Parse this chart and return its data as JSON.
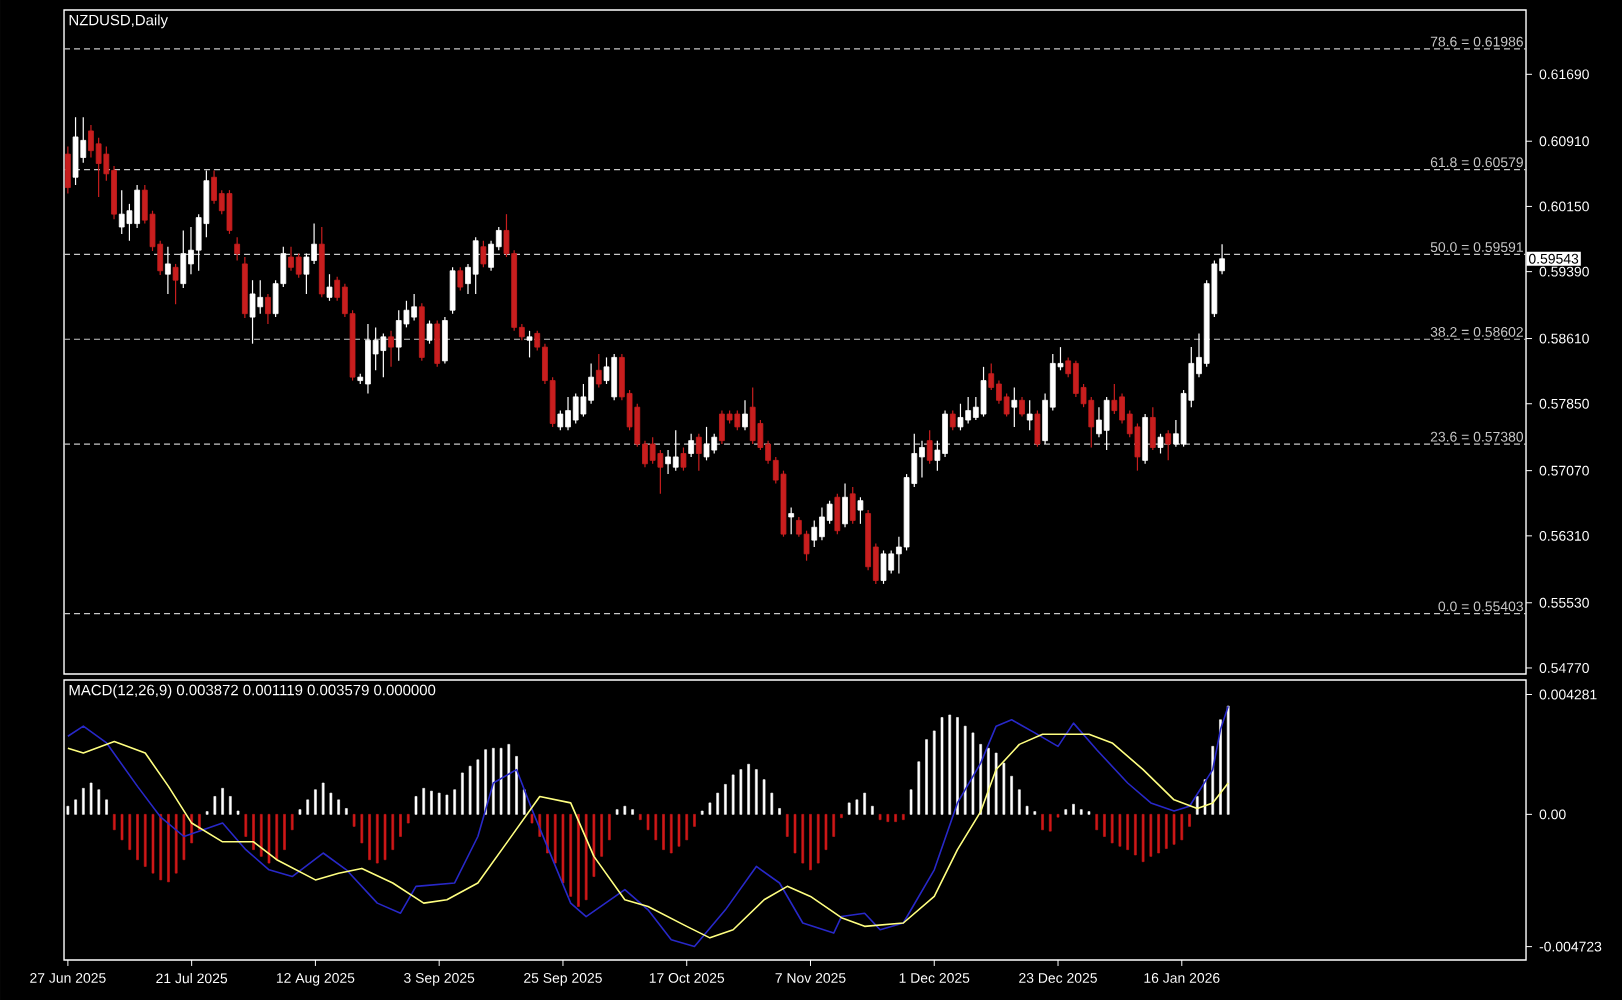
{
  "chart_data": [
    {
      "type": "candlestick",
      "title": "NZDUSD,Daily",
      "tick_labels": "y",
      "categories": [
        null,
        null,
        null,
        null,
        null,
        null,
        null,
        null,
        null,
        null,
        null,
        null,
        null,
        null,
        null,
        null,
        null,
        null,
        null,
        null,
        null,
        null,
        null,
        null,
        null,
        null,
        null,
        null,
        null,
        null,
        null,
        null,
        null,
        null,
        null,
        null,
        null,
        null,
        null,
        null,
        null,
        null,
        null,
        null,
        null,
        null,
        null,
        null,
        null,
        null,
        null,
        null,
        null,
        null,
        null,
        null,
        null,
        null,
        null,
        null,
        null,
        null,
        null,
        null,
        null,
        null,
        null,
        null,
        null,
        null,
        null,
        null,
        null,
        null,
        null,
        null,
        null,
        null,
        null,
        null,
        null,
        null,
        null,
        null,
        null,
        null,
        null,
        null,
        null,
        null,
        null,
        null,
        null,
        null,
        null,
        null,
        null,
        null,
        null,
        null,
        null,
        null,
        null,
        null,
        null,
        null,
        null,
        null,
        null,
        null,
        null,
        null,
        null,
        null,
        null,
        null,
        null,
        null,
        null,
        null,
        null,
        null,
        null,
        null,
        null,
        null,
        null,
        null,
        null,
        null,
        null,
        null,
        null,
        null,
        null,
        null,
        null,
        null,
        null,
        null,
        null,
        null,
        null,
        null,
        null,
        null,
        null,
        null,
        null,
        null,
        null,
        null,
        null,
        null,
        null,
        null,
        null,
        null,
        null,
        null,
        null,
        null,
        null,
        null,
        null,
        null,
        null,
        null,
        null,
        null,
        null,
        null,
        null,
        null,
        null,
        null,
        null,
        null,
        null,
        null,
        null,
        null,
        null,
        null,
        null,
        null,
        null,
        null,
        null,
        null
      ],
      "ohlc": [
        [
          0.6076,
          0.6085,
          0.603,
          0.6037
        ],
        [
          0.6049,
          0.6119,
          0.604,
          0.6096
        ],
        [
          0.6072,
          0.6119,
          0.6066,
          0.6092
        ],
        [
          0.6103,
          0.611,
          0.6072,
          0.608
        ],
        [
          0.6088,
          0.6095,
          0.6026,
          0.6065
        ],
        [
          0.6076,
          0.6085,
          0.6045,
          0.6053
        ],
        [
          0.6057,
          0.6062,
          0.6,
          0.6006
        ],
        [
          0.5991,
          0.6034,
          0.5983,
          0.6006
        ],
        [
          0.5995,
          0.6018,
          0.5975,
          0.601
        ],
        [
          0.5995,
          0.604,
          0.599,
          0.6034
        ],
        [
          0.6034,
          0.604,
          0.5995,
          0.5999
        ],
        [
          0.6006,
          0.601,
          0.5963,
          0.5968
        ],
        [
          0.5971,
          0.5975,
          0.5935,
          0.594
        ],
        [
          0.5936,
          0.5968,
          0.5913,
          0.5948
        ],
        [
          0.5944,
          0.5948,
          0.5901,
          0.5929
        ],
        [
          0.5925,
          0.5987,
          0.592,
          0.596
        ],
        [
          0.5948,
          0.5991,
          0.5936,
          0.5964
        ],
        [
          0.5964,
          0.6006,
          0.594,
          0.6002
        ],
        [
          0.5995,
          0.6057,
          0.5979,
          0.6045
        ],
        [
          0.6049,
          0.6057,
          0.6018,
          0.6022
        ],
        [
          0.603,
          0.6034,
          0.6006,
          0.601
        ],
        [
          0.603,
          0.6034,
          0.5983,
          0.5987
        ],
        [
          0.5971,
          0.5979,
          0.5952,
          0.596
        ],
        [
          0.5948,
          0.5956,
          0.5885,
          0.589
        ],
        [
          0.5886,
          0.5929,
          0.5855,
          0.5913
        ],
        [
          0.5898,
          0.5929,
          0.589,
          0.5909
        ],
        [
          0.5909,
          0.5913,
          0.5878,
          0.589
        ],
        [
          0.589,
          0.5929,
          0.5886,
          0.5925
        ],
        [
          0.5925,
          0.5968,
          0.5921,
          0.596
        ],
        [
          0.5956,
          0.5968,
          0.594,
          0.5944
        ],
        [
          0.5956,
          0.596,
          0.5932,
          0.5936
        ],
        [
          0.5936,
          0.596,
          0.5913,
          0.5956
        ],
        [
          0.5952,
          0.5995,
          0.5948,
          0.5971
        ],
        [
          0.5971,
          0.5991,
          0.5909,
          0.5913
        ],
        [
          0.5909,
          0.5936,
          0.5905,
          0.5921
        ],
        [
          0.5929,
          0.5933,
          0.5905,
          0.5909
        ],
        [
          0.5921,
          0.5925,
          0.5886,
          0.589
        ],
        [
          0.589,
          0.5894,
          0.5812,
          0.5816
        ],
        [
          0.5812,
          0.582,
          0.5808,
          0.5816
        ],
        [
          0.5808,
          0.5878,
          0.5797,
          0.5859
        ],
        [
          0.5843,
          0.5874,
          0.5824,
          0.5859
        ],
        [
          0.5847,
          0.5867,
          0.5816,
          0.5863
        ],
        [
          0.5863,
          0.587,
          0.5828,
          0.5851
        ],
        [
          0.5851,
          0.5894,
          0.5835,
          0.5882
        ],
        [
          0.5878,
          0.5905,
          0.5874,
          0.5894
        ],
        [
          0.5886,
          0.5913,
          0.5882,
          0.5898
        ],
        [
          0.5898,
          0.5902,
          0.5835,
          0.5839
        ],
        [
          0.5859,
          0.5882,
          0.5855,
          0.5878
        ],
        [
          0.5878,
          0.5882,
          0.5828,
          0.5832
        ],
        [
          0.5835,
          0.5886,
          0.5832,
          0.5882
        ],
        [
          0.5894,
          0.5944,
          0.589,
          0.594
        ],
        [
          0.594,
          0.5944,
          0.5917,
          0.5921
        ],
        [
          0.5925,
          0.5948,
          0.5913,
          0.5944
        ],
        [
          0.5936,
          0.5979,
          0.5913,
          0.5975
        ],
        [
          0.5968,
          0.5975,
          0.5944,
          0.5948
        ],
        [
          0.5944,
          0.5975,
          0.594,
          0.5971
        ],
        [
          0.5968,
          0.5991,
          0.5964,
          0.5987
        ],
        [
          0.5987,
          0.6006,
          0.5956,
          0.596
        ],
        [
          0.596,
          0.5964,
          0.587,
          0.5874
        ],
        [
          0.5874,
          0.5878,
          0.5859,
          0.5863
        ],
        [
          0.5859,
          0.587,
          0.5839,
          0.5863
        ],
        [
          0.5867,
          0.587,
          0.5847,
          0.5851
        ],
        [
          0.5851,
          0.5855,
          0.5808,
          0.5812
        ],
        [
          0.5812,
          0.5816,
          0.5758,
          0.5762
        ],
        [
          0.5758,
          0.5777,
          0.5754,
          0.5773
        ],
        [
          0.5758,
          0.5793,
          0.5754,
          0.5777
        ],
        [
          0.5766,
          0.5797,
          0.5762,
          0.5793
        ],
        [
          0.5773,
          0.5808,
          0.577,
          0.5793
        ],
        [
          0.5789,
          0.5832,
          0.5785,
          0.5816
        ],
        [
          0.5824,
          0.5843,
          0.5804,
          0.5808
        ],
        [
          0.5812,
          0.5839,
          0.5808,
          0.5828
        ],
        [
          0.5793,
          0.5843,
          0.5789,
          0.5839
        ],
        [
          0.5839,
          0.5843,
          0.5789,
          0.5793
        ],
        [
          0.5797,
          0.5801,
          0.5754,
          0.5758
        ],
        [
          0.5781,
          0.5785,
          0.5735,
          0.5738
        ],
        [
          0.5738,
          0.5742,
          0.5711,
          0.5715
        ],
        [
          0.5738,
          0.5746,
          0.5715,
          0.5719
        ],
        [
          0.5727,
          0.5731,
          0.568,
          0.5711
        ],
        [
          0.5715,
          0.5731,
          0.5703,
          0.5723
        ],
        [
          0.5711,
          0.5754,
          0.5707,
          0.5723
        ],
        [
          0.5727,
          0.5734,
          0.5707,
          0.5711
        ],
        [
          0.5727,
          0.575,
          0.5723,
          0.5742
        ],
        [
          0.5746,
          0.575,
          0.5707,
          0.5727
        ],
        [
          0.5723,
          0.5758,
          0.5719,
          0.5738
        ],
        [
          0.5731,
          0.575,
          0.5727,
          0.5746
        ],
        [
          0.5773,
          0.5777,
          0.5738,
          0.5742
        ],
        [
          0.5773,
          0.5777,
          0.5762,
          0.5766
        ],
        [
          0.5773,
          0.5777,
          0.5754,
          0.5758
        ],
        [
          0.5758,
          0.5789,
          0.5754,
          0.5773
        ],
        [
          0.5781,
          0.5804,
          0.5738,
          0.5742
        ],
        [
          0.5762,
          0.5766,
          0.5731,
          0.5734
        ],
        [
          0.5738,
          0.5742,
          0.5715,
          0.5719
        ],
        [
          0.5719,
          0.5723,
          0.5692,
          0.5696
        ],
        [
          0.5703,
          0.5707,
          0.563,
          0.5633
        ],
        [
          0.5653,
          0.5664,
          0.5633,
          0.5657
        ],
        [
          0.5649,
          0.5653,
          0.563,
          0.5633
        ],
        [
          0.5633,
          0.5637,
          0.5602,
          0.561
        ],
        [
          0.5626,
          0.5649,
          0.5618,
          0.5641
        ],
        [
          0.563,
          0.5664,
          0.5626,
          0.5653
        ],
        [
          0.5649,
          0.5672,
          0.5645,
          0.5668
        ],
        [
          0.5676,
          0.568,
          0.5633,
          0.5637
        ],
        [
          0.5645,
          0.5692,
          0.5641,
          0.5676
        ],
        [
          0.568,
          0.5688,
          0.5645,
          0.5649
        ],
        [
          0.5661,
          0.5676,
          0.5645,
          0.5672
        ],
        [
          0.5657,
          0.5661,
          0.5591,
          0.5595
        ],
        [
          0.5618,
          0.5622,
          0.5575,
          0.5579
        ],
        [
          0.5579,
          0.5614,
          0.5575,
          0.561
        ],
        [
          0.5591,
          0.5614,
          0.5587,
          0.561
        ],
        [
          0.561,
          0.563,
          0.5587,
          0.5618
        ],
        [
          0.5618,
          0.5703,
          0.5614,
          0.5699
        ],
        [
          0.5692,
          0.575,
          0.5688,
          0.5727
        ],
        [
          0.5723,
          0.5742,
          0.5699,
          0.5734
        ],
        [
          0.5742,
          0.5754,
          0.5715,
          0.5719
        ],
        [
          0.5719,
          0.5742,
          0.5707,
          0.5731
        ],
        [
          0.5727,
          0.5777,
          0.5723,
          0.5773
        ],
        [
          0.5773,
          0.5777,
          0.5754,
          0.5758
        ],
        [
          0.5758,
          0.5785,
          0.5754,
          0.5769
        ],
        [
          0.5766,
          0.5793,
          0.5762,
          0.5777
        ],
        [
          0.5769,
          0.5793,
          0.5766,
          0.5781
        ],
        [
          0.5773,
          0.5828,
          0.577,
          0.5812
        ],
        [
          0.582,
          0.5832,
          0.5801,
          0.5804
        ],
        [
          0.5808,
          0.5812,
          0.5785,
          0.5789
        ],
        [
          0.5793,
          0.5797,
          0.577,
          0.5773
        ],
        [
          0.5781,
          0.5804,
          0.5758,
          0.5789
        ],
        [
          0.5789,
          0.5793,
          0.577,
          0.5773
        ],
        [
          0.5766,
          0.5789,
          0.5754,
          0.5773
        ],
        [
          0.5773,
          0.5777,
          0.5735,
          0.5738
        ],
        [
          0.5742,
          0.5797,
          0.5738,
          0.5789
        ],
        [
          0.5781,
          0.5843,
          0.5777,
          0.5832
        ],
        [
          0.5828,
          0.5851,
          0.5824,
          0.5832
        ],
        [
          0.5835,
          0.5839,
          0.5816,
          0.582
        ],
        [
          0.5832,
          0.5835,
          0.5793,
          0.5797
        ],
        [
          0.5804,
          0.5808,
          0.5781,
          0.5785
        ],
        [
          0.5789,
          0.5793,
          0.5734,
          0.5758
        ],
        [
          0.575,
          0.5781,
          0.5746,
          0.5766
        ],
        [
          0.5754,
          0.5793,
          0.5731,
          0.5789
        ],
        [
          0.5789,
          0.5808,
          0.5773,
          0.5777
        ],
        [
          0.5793,
          0.5797,
          0.5762,
          0.5766
        ],
        [
          0.5773,
          0.5777,
          0.5746,
          0.575
        ],
        [
          0.5758,
          0.5762,
          0.5707,
          0.5723
        ],
        [
          0.5719,
          0.5773,
          0.5715,
          0.5769
        ],
        [
          0.5769,
          0.5781,
          0.5731,
          0.5734
        ],
        [
          0.5734,
          0.575,
          0.5727,
          0.5746
        ],
        [
          0.575,
          0.5754,
          0.5719,
          0.5738
        ],
        [
          0.5738,
          0.5766,
          0.5735,
          0.575
        ],
        [
          0.5738,
          0.5801,
          0.5735,
          0.5797
        ],
        [
          0.5789,
          0.5851,
          0.5781,
          0.5832
        ],
        [
          0.582,
          0.5867,
          0.5816,
          0.5839
        ],
        [
          0.5832,
          0.5929,
          0.5828,
          0.5925
        ],
        [
          0.589,
          0.5952,
          0.5886,
          0.5948
        ],
        [
          0.594,
          0.5971,
          0.5936,
          0.5954
        ],
        null,
        null,
        null,
        null,
        null,
        null,
        null,
        null,
        null,
        null,
        null,
        null,
        null,
        null,
        null,
        null,
        null,
        null,
        null,
        null,
        null,
        null,
        null,
        null,
        null,
        null,
        null,
        null,
        null,
        null,
        null,
        null,
        null,
        null,
        null,
        null,
        null,
        null,
        null
      ],
      "ylim": [
        0.547,
        0.6244
      ],
      "yticks": [
        {
          "value": 0.5477,
          "label": "0.54770"
        },
        {
          "value": 0.5553,
          "label": "0.55530"
        },
        {
          "value": 0.5631,
          "label": "0.56310"
        },
        {
          "value": 0.5707,
          "label": "0.57070"
        },
        {
          "value": 0.5785,
          "label": "0.57850"
        },
        {
          "value": 0.5861,
          "label": "0.58610"
        },
        {
          "value": 0.5939,
          "label": "0.59390"
        },
        {
          "value": 0.6015,
          "label": "0.60150"
        },
        {
          "value": 0.6091,
          "label": "0.60910"
        },
        {
          "value": 0.6169,
          "label": "0.61690"
        }
      ],
      "ref_lines": [
        {
          "axis": "y",
          "value": 0.61986,
          "label": "78.6 = 0.61986",
          "color": "#c8c8c8",
          "line_style": "dashed"
        },
        {
          "axis": "y",
          "value": 0.60579,
          "label": "61.8 = 0.60579",
          "color": "#c8c8c8",
          "line_style": "dashed"
        },
        {
          "axis": "y",
          "value": 0.59591,
          "label": "50.0 = 0.59591",
          "color": "#c8c8c8",
          "line_style": "dashed"
        },
        {
          "axis": "y",
          "value": 0.58602,
          "label": "38.2 = 0.58602",
          "color": "#c8c8c8",
          "line_style": "dashed"
        },
        {
          "axis": "y",
          "value": 0.5738,
          "label": "23.6 = 0.57380",
          "color": "#c8c8c8",
          "line_style": "dashed"
        },
        {
          "axis": "y",
          "value": 0.55403,
          "label": "0.0 = 0.55403",
          "color": "#c8c8c8",
          "line_style": "dashed"
        }
      ],
      "annotations": [
        "0.59543"
      ]
    },
    {
      "type": "bar",
      "title": "MACD(12,26,9) 0.003872 0.001119 0.003579 0.000000",
      "categories": [
        "27 Jun 2025",
        null,
        null,
        null,
        null,
        null,
        null,
        null,
        null,
        null,
        null,
        null,
        null,
        null,
        null,
        null,
        "21 Jul 2025",
        null,
        null,
        null,
        null,
        null,
        null,
        null,
        null,
        null,
        null,
        null,
        null,
        null,
        null,
        null,
        "12 Aug 2025",
        null,
        null,
        null,
        null,
        null,
        null,
        null,
        null,
        null,
        null,
        null,
        null,
        null,
        null,
        null,
        "3 Sep 2025",
        null,
        null,
        null,
        null,
        null,
        null,
        null,
        null,
        null,
        null,
        null,
        null,
        null,
        null,
        null,
        "25 Sep 2025",
        null,
        null,
        null,
        null,
        null,
        null,
        null,
        null,
        null,
        null,
        null,
        null,
        null,
        null,
        null,
        "17 Oct 2025",
        null,
        null,
        null,
        null,
        null,
        null,
        null,
        null,
        null,
        null,
        null,
        null,
        null,
        null,
        null,
        "7 Nov 2025",
        null,
        null,
        null,
        null,
        null,
        null,
        null,
        null,
        null,
        null,
        null,
        null,
        null,
        null,
        null,
        "1 Dec 2025",
        null,
        null,
        null,
        null,
        null,
        null,
        null,
        null,
        null,
        null,
        null,
        null,
        null,
        null,
        null,
        "23 Dec 2025",
        null,
        null,
        null,
        null,
        null,
        null,
        null,
        null,
        null,
        null,
        null,
        null,
        null,
        null,
        null,
        "16 Jan 2026",
        null,
        null,
        null,
        null,
        null,
        null,
        null,
        null,
        null,
        null,
        null,
        null,
        null,
        null,
        null,
        null,
        null,
        null,
        null,
        null,
        null,
        null,
        null,
        null,
        null,
        null,
        null,
        null,
        null,
        null,
        null,
        null,
        null,
        null,
        null,
        null,
        null,
        null,
        null,
        null,
        null,
        null,
        null,
        null
      ],
      "ylim": [
        -0.0052,
        0.0048
      ],
      "yticks": [
        {
          "value": -0.004723,
          "label": "-0.004723"
        },
        {
          "value": 0,
          "label": "0.00"
        },
        {
          "value": 0.004281,
          "label": "0.004281"
        }
      ],
      "series": [
        {
          "type": "bar",
          "values": [
            0.00029,
            0.00052,
            0.00093,
            0.00112,
            0.00088,
            0.00052,
            -0.00055,
            -0.00091,
            -0.00126,
            -0.00162,
            -0.00186,
            -0.0021,
            -0.00234,
            -0.00241,
            -0.0021,
            -0.00162,
            -0.00102,
            -0.00055,
            0.0001,
            0.00064,
            0.00093,
            0.00064,
            0.00012,
            -0.00079,
            -0.00126,
            -0.0015,
            -0.00174,
            -0.00162,
            -0.00126,
            -0.00055,
            0.00017,
            0.00052,
            0.00088,
            0.00112,
            0.00076,
            0.00052,
            0.00021,
            -0.00043,
            -0.00102,
            -0.00162,
            -0.00174,
            -0.00162,
            -0.00126,
            -0.00079,
            -0.00031,
            0.00064,
            0.00093,
            0.00083,
            0.00076,
            0.00069,
            0.00088,
            0.00148,
            0.00172,
            0.00195,
            0.00231,
            0.00236,
            0.00236,
            0.0025,
            0.00207,
            0.00088,
            -0.00031,
            -0.00079,
            -0.00138,
            -0.00174,
            -0.00245,
            -0.00293,
            -0.00329,
            -0.00305,
            -0.00222,
            -0.0015,
            -0.00091,
            0.00017,
            0.00029,
            0.00017,
            -0.00019,
            -0.00055,
            -0.00091,
            -0.00126,
            -0.00138,
            -0.00114,
            -0.00091,
            -0.00043,
            0.00012,
            0.00041,
            0.00076,
            0.00107,
            0.00141,
            0.0016,
            0.00179,
            0.0016,
            0.00124,
            0.00076,
            0.00021,
            -0.00079,
            -0.00138,
            -0.00174,
            -0.00198,
            -0.00174,
            -0.00126,
            -0.00079,
            -0.00012,
            0.00041,
            0.00052,
            0.00076,
            0.00029,
            -0.00019,
            -0.00026,
            -0.00026,
            -0.00019,
            0.00088,
            0.00188,
            0.00267,
            0.00298,
            0.00346,
            0.00355,
            0.00346,
            0.00315,
            0.00291,
            0.0025,
            0.00236,
            0.00219,
            0.00183,
            0.00136,
            0.00088,
            0.00029,
            0.0001,
            -0.00055,
            -0.0006,
            -0.0001,
            0.00017,
            0.00036,
            0.00017,
            0.0001,
            -0.00055,
            -0.00079,
            -0.00102,
            -0.00114,
            -0.00126,
            -0.00145,
            -0.00169,
            -0.0015,
            -0.00138,
            -0.00122,
            -0.00107,
            -0.00091,
            -0.00043,
            0.00064,
            0.00124,
            0.00243,
            0.00338,
            0.00387,
            null,
            null,
            null,
            null,
            null,
            null,
            null,
            null,
            null,
            null,
            null,
            null,
            null,
            null,
            null,
            null,
            null,
            null,
            null,
            null,
            null,
            null,
            null,
            null,
            null,
            null,
            null,
            null,
            null,
            null,
            null,
            null,
            null,
            null,
            null,
            null,
            null,
            null
          ],
          "colors": [
            "#ffffff",
            "#ffffff",
            "#ffffff",
            "#ffffff",
            "#ffffff",
            "#ffffff",
            "#d01818",
            "#d01818",
            "#d01818",
            "#d01818",
            "#d01818",
            "#d01818",
            "#d01818",
            "#d01818",
            "#d01818",
            "#d01818",
            "#d01818",
            "#d01818",
            "#ffffff",
            "#ffffff",
            "#ffffff",
            "#ffffff",
            "#ffffff",
            "#d01818",
            "#d01818",
            "#d01818",
            "#d01818",
            "#d01818",
            "#d01818",
            "#d01818",
            "#ffffff",
            "#ffffff",
            "#ffffff",
            "#ffffff",
            "#ffffff",
            "#ffffff",
            "#ffffff",
            "#d01818",
            "#d01818",
            "#d01818",
            "#d01818",
            "#d01818",
            "#d01818",
            "#d01818",
            "#d01818",
            "#ffffff",
            "#ffffff",
            "#ffffff",
            "#ffffff",
            "#ffffff",
            "#ffffff",
            "#ffffff",
            "#ffffff",
            "#ffffff",
            "#ffffff",
            "#ffffff",
            "#ffffff",
            "#ffffff",
            "#ffffff",
            "#ffffff",
            "#d01818",
            "#d01818",
            "#d01818",
            "#d01818",
            "#d01818",
            "#d01818",
            "#d01818",
            "#d01818",
            "#d01818",
            "#d01818",
            "#d01818",
            "#ffffff",
            "#ffffff",
            "#ffffff",
            "#d01818",
            "#d01818",
            "#d01818",
            "#d01818",
            "#d01818",
            "#d01818",
            "#d01818",
            "#d01818",
            "#ffffff",
            "#ffffff",
            "#ffffff",
            "#ffffff",
            "#ffffff",
            "#ffffff",
            "#ffffff",
            "#ffffff",
            "#ffffff",
            "#ffffff",
            "#ffffff",
            "#d01818",
            "#d01818",
            "#d01818",
            "#d01818",
            "#d01818",
            "#d01818",
            "#d01818",
            "#d01818",
            "#ffffff",
            "#ffffff",
            "#ffffff",
            "#ffffff",
            "#d01818",
            "#d01818",
            "#d01818",
            "#d01818",
            "#ffffff",
            "#ffffff",
            "#ffffff",
            "#ffffff",
            "#ffffff",
            "#ffffff",
            "#ffffff",
            "#ffffff",
            "#ffffff",
            "#ffffff",
            "#ffffff",
            "#ffffff",
            "#ffffff",
            "#ffffff",
            "#ffffff",
            "#ffffff",
            "#ffffff",
            "#d01818",
            "#d01818",
            "#d01818",
            "#ffffff",
            "#ffffff",
            "#ffffff",
            "#ffffff",
            "#d01818",
            "#d01818",
            "#d01818",
            "#d01818",
            "#d01818",
            "#d01818",
            "#d01818",
            "#d01818",
            "#d01818",
            "#d01818",
            "#d01818",
            "#d01818",
            "#d01818",
            "#ffffff",
            "#ffffff",
            "#ffffff",
            "#ffffff",
            "#ffffff",
            null,
            null,
            null,
            null,
            null,
            null,
            null,
            null,
            null,
            null,
            null,
            null,
            null,
            null,
            null,
            null,
            null,
            null,
            null,
            null,
            null,
            null,
            null,
            null,
            null,
            null,
            null,
            null,
            null,
            null,
            null,
            null,
            null,
            null,
            null,
            null,
            null,
            null
          ]
        },
        {
          "type": "line",
          "color": "#2828c8",
          "values": [
            0.00279,
            null,
            0.00315,
            null,
            null,
            0.00255,
            null,
            null,
            null,
            0.001,
            null,
            null,
            -0.0001,
            null,
            null,
            -0.00079,
            null,
            null,
            null,
            null,
            -0.00031,
            null,
            null,
            -0.00126,
            null,
            null,
            -0.00198,
            null,
            null,
            -0.00222,
            null,
            null,
            null,
            -0.00138,
            null,
            null,
            -0.00198,
            null,
            null,
            null,
            -0.00317,
            null,
            null,
            -0.00353,
            null,
            -0.00257,
            null,
            null,
            null,
            null,
            -0.00245,
            null,
            null,
            -0.00079,
            null,
            0.00112,
            null,
            null,
            0.0016,
            null,
            0.00017,
            null,
            null,
            null,
            null,
            -0.00317,
            null,
            -0.00365,
            null,
            null,
            null,
            null,
            -0.00269,
            null,
            null,
            -0.00341,
            null,
            null,
            -0.00448,
            null,
            null,
            -0.00472,
            null,
            null,
            null,
            -0.00341,
            null,
            null,
            null,
            -0.00186,
            null,
            null,
            -0.00245,
            null,
            null,
            -0.00388,
            null,
            null,
            null,
            -0.00424,
            -0.00365,
            null,
            null,
            -0.00353,
            null,
            -0.00412,
            null,
            null,
            -0.00388,
            null,
            null,
            null,
            -0.00198,
            null,
            null,
            0.00041,
            null,
            null,
            0.00183,
            null,
            0.00315,
            null,
            0.00338,
            null,
            null,
            0.00291,
            null,
            null,
            0.00243,
            null,
            0.00326,
            null,
            null,
            0.00231,
            null,
            null,
            null,
            0.00112,
            null,
            null,
            0.00041,
            null,
            null,
            0.00012,
            null,
            0.00029,
            null,
            null,
            0.0016,
            0.00303,
            0.00386,
            null,
            null,
            null,
            null,
            null,
            null,
            null,
            null,
            null,
            null,
            null,
            null,
            null,
            null,
            null,
            null,
            null,
            null,
            null,
            null,
            null,
            null,
            null,
            null,
            null,
            null,
            null,
            null,
            null,
            null,
            null,
            null,
            null,
            null,
            null,
            null,
            null,
            null
          ]
        },
        {
          "type": "line",
          "color": "#ffff80",
          "values": [
            0.00236,
            null,
            0.00219,
            null,
            null,
            null,
            0.0026,
            null,
            null,
            null,
            0.00219,
            null,
            null,
            0.001,
            null,
            null,
            -0.00031,
            null,
            null,
            null,
            -0.00098,
            null,
            null,
            null,
            -0.00098,
            null,
            null,
            -0.00162,
            null,
            null,
            null,
            null,
            -0.00234,
            null,
            null,
            -0.0021,
            null,
            null,
            -0.00193,
            null,
            null,
            null,
            -0.00245,
            null,
            null,
            null,
            -0.00317,
            null,
            null,
            -0.00305,
            null,
            null,
            null,
            -0.00245,
            null,
            null,
            null,
            -0.00091,
            null,
            null,
            null,
            0.00064,
            null,
            null,
            null,
            0.00041,
            null,
            null,
            -0.0015,
            null,
            null,
            null,
            -0.00305,
            null,
            null,
            -0.00329,
            null,
            null,
            null,
            null,
            -0.004,
            null,
            null,
            -0.00441,
            null,
            null,
            -0.00412,
            null,
            null,
            null,
            -0.00305,
            null,
            null,
            -0.00257,
            null,
            null,
            -0.00293,
            null,
            null,
            null,
            -0.00369,
            null,
            null,
            -0.004,
            null,
            null,
            null,
            null,
            -0.00388,
            null,
            null,
            null,
            -0.00293,
            null,
            null,
            -0.00126,
            null,
            null,
            0.0001,
            null,
            0.0016,
            null,
            null,
            0.0025,
            null,
            null,
            0.00286,
            null,
            null,
            null,
            null,
            null,
            0.00286,
            null,
            null,
            0.00255,
            null,
            null,
            null,
            0.0016,
            null,
            null,
            null,
            0.00052,
            null,
            null,
            0.00021,
            null,
            0.00041,
            null,
            0.00112,
            null,
            null,
            null,
            null,
            null,
            null,
            null,
            null,
            null,
            null,
            null,
            null,
            null,
            null,
            null,
            null,
            null,
            null,
            null,
            null,
            null,
            null,
            null,
            null,
            null,
            null,
            null,
            null,
            null,
            null,
            null,
            null,
            null,
            null,
            null,
            null,
            null,
            null
          ]
        }
      ]
    }
  ]
}
